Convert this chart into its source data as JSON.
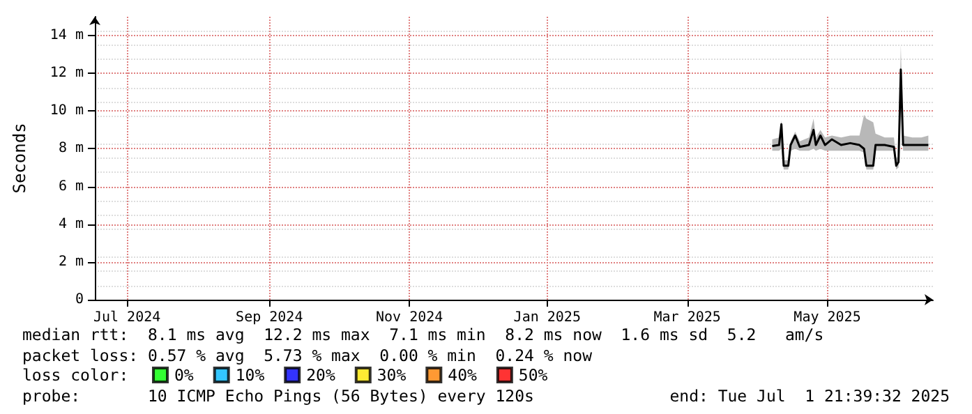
{
  "chart_data": {
    "type": "line",
    "ylabel": "Seconds",
    "x": [
      "2025-04-22",
      "2025-04-25",
      "2025-04-26",
      "2025-04-27",
      "2025-04-29",
      "2025-04-30",
      "2025-05-02",
      "2025-05-04",
      "2025-05-08",
      "2025-05-10",
      "2025-05-11",
      "2025-05-13",
      "2025-05-15",
      "2025-05-18",
      "2025-05-22",
      "2025-05-26",
      "2025-05-30",
      "2025-06-01",
      "2025-06-02",
      "2025-06-05",
      "2025-06-06",
      "2025-06-10",
      "2025-06-14",
      "2025-06-15",
      "2025-06-16",
      "2025-06-17",
      "2025-06-18",
      "2025-06-22",
      "2025-06-26",
      "2025-06-29"
    ],
    "series": [
      {
        "color": "#000000",
        "values": [
          8.15,
          8.2,
          9.3,
          7.1,
          7.1,
          8.2,
          8.7,
          8.1,
          8.2,
          9.0,
          8.2,
          8.7,
          8.2,
          8.5,
          8.2,
          8.3,
          8.2,
          8.0,
          7.1,
          7.1,
          8.2,
          8.2,
          8.1,
          7.1,
          7.3,
          12.2,
          8.2,
          8.2,
          8.2,
          8.2
        ],
        "lower": [
          7.9,
          7.9,
          8.0,
          6.9,
          6.9,
          7.9,
          8.0,
          7.9,
          7.9,
          8.0,
          7.9,
          8.0,
          7.9,
          7.9,
          7.9,
          7.9,
          7.9,
          7.8,
          6.9,
          6.9,
          7.9,
          7.9,
          7.9,
          6.9,
          7.0,
          11.5,
          7.9,
          7.9,
          7.9,
          7.9
        ],
        "upper": [
          8.5,
          8.6,
          9.5,
          7.4,
          7.4,
          8.4,
          8.9,
          8.4,
          8.6,
          9.6,
          8.6,
          9.0,
          8.6,
          8.7,
          8.6,
          8.7,
          8.7,
          9.8,
          9.6,
          9.4,
          8.8,
          8.6,
          8.6,
          7.5,
          7.6,
          13.5,
          8.7,
          8.6,
          8.6,
          8.7
        ]
      },
      {
        "type": "scatter",
        "name": "0%",
        "color": "#00ff00",
        "values": [
          null,
          null,
          null,
          null,
          null,
          null,
          null,
          null,
          null,
          null,
          null,
          null,
          null,
          null,
          null,
          null,
          null,
          null,
          null,
          null,
          null,
          null,
          null,
          null,
          null,
          null,
          null,
          null,
          null,
          null
        ]
      },
      {
        "type": "scatter",
        "name": "10%",
        "color": "#00b8ff",
        "values": [
          null,
          null,
          null,
          null,
          null,
          null,
          null,
          null,
          null,
          null,
          null,
          null,
          null,
          null,
          null,
          null,
          null,
          null,
          null,
          null,
          null,
          null,
          null,
          null,
          null,
          null,
          null,
          null,
          null,
          null
        ]
      },
      {
        "type": "scatter",
        "name": "20%",
        "color": "#0000ff",
        "values": [
          null,
          null,
          null,
          null,
          null,
          null,
          null,
          null,
          null,
          null,
          null,
          null,
          null,
          null,
          null,
          null,
          null,
          null,
          null,
          null,
          null,
          null,
          null,
          null,
          null,
          null,
          null,
          null,
          null,
          null
        ]
      },
      {
        "type": "scatter",
        "name": "30%",
        "color": "#ffe600",
        "values": [
          null,
          null,
          null,
          null,
          null,
          null,
          null,
          null,
          null,
          null,
          null,
          null,
          null,
          null,
          null,
          null,
          null,
          null,
          null,
          null,
          null,
          null,
          null,
          null,
          null,
          null,
          null,
          null,
          null,
          null
        ]
      },
      {
        "type": "scatter",
        "name": "40%",
        "color": "#ff8000",
        "values": [
          null,
          null,
          null,
          null,
          null,
          null,
          null,
          null,
          null,
          null,
          null,
          null,
          null,
          null,
          null,
          null,
          null,
          null,
          null,
          null,
          null,
          null,
          null,
          null,
          null,
          null,
          null,
          null,
          null,
          null
        ]
      },
      {
        "type": "scatter",
        "name": "50%",
        "color": "#ff0000",
        "values": [
          null,
          null,
          null,
          null,
          null,
          null,
          null,
          null,
          null,
          null,
          null,
          null,
          null,
          null,
          null,
          null,
          null,
          null,
          null,
          null,
          null,
          null,
          null,
          null,
          null,
          null,
          null,
          null,
          null,
          null
        ]
      }
    ],
    "legend": "bottom left",
    "legend_title": "loss color:",
    "xlim": [
      "2024-07-01",
      "2025-07-01"
    ],
    "xticks": [
      {
        "value": "2024-07-15",
        "label": "Jul 2024"
      },
      {
        "value": "2024-09-15",
        "label": "Sep 2024"
      },
      {
        "value": "2024-11-15",
        "label": "Nov 2024"
      },
      {
        "value": "2025-01-14",
        "label": "Jan 2025"
      },
      {
        "value": "2025-03-16",
        "label": "Mar 2025"
      },
      {
        "value": "2025-05-16",
        "label": "May 2025"
      }
    ],
    "ylim": [
      0,
      15
    ],
    "yticks": [
      {
        "value": 0,
        "label": "0"
      },
      {
        "value": 2,
        "label": "2 m"
      },
      {
        "value": 4,
        "label": "4 m"
      },
      {
        "value": 6,
        "label": "6 m"
      },
      {
        "value": 8,
        "label": "8 m"
      },
      {
        "value": 10,
        "label": "10 m"
      },
      {
        "value": 12,
        "label": "12 m"
      },
      {
        "value": 14,
        "label": "14 m"
      }
    ],
    "grid": true,
    "annotations": [
      "median rtt:  8.1 ms avg  12.2 ms max  7.1 ms min  8.2 ms now  1.6 ms sd  5.2   am/s",
      "packet loss: 0.57 % avg  5.73 % max  0.00 % min  0.24 % now",
      "probe:       10 ICMP Echo Pings (56 Bytes) every 120s",
      "end: Tue Jul  1 21:39:32 2025"
    ]
  }
}
